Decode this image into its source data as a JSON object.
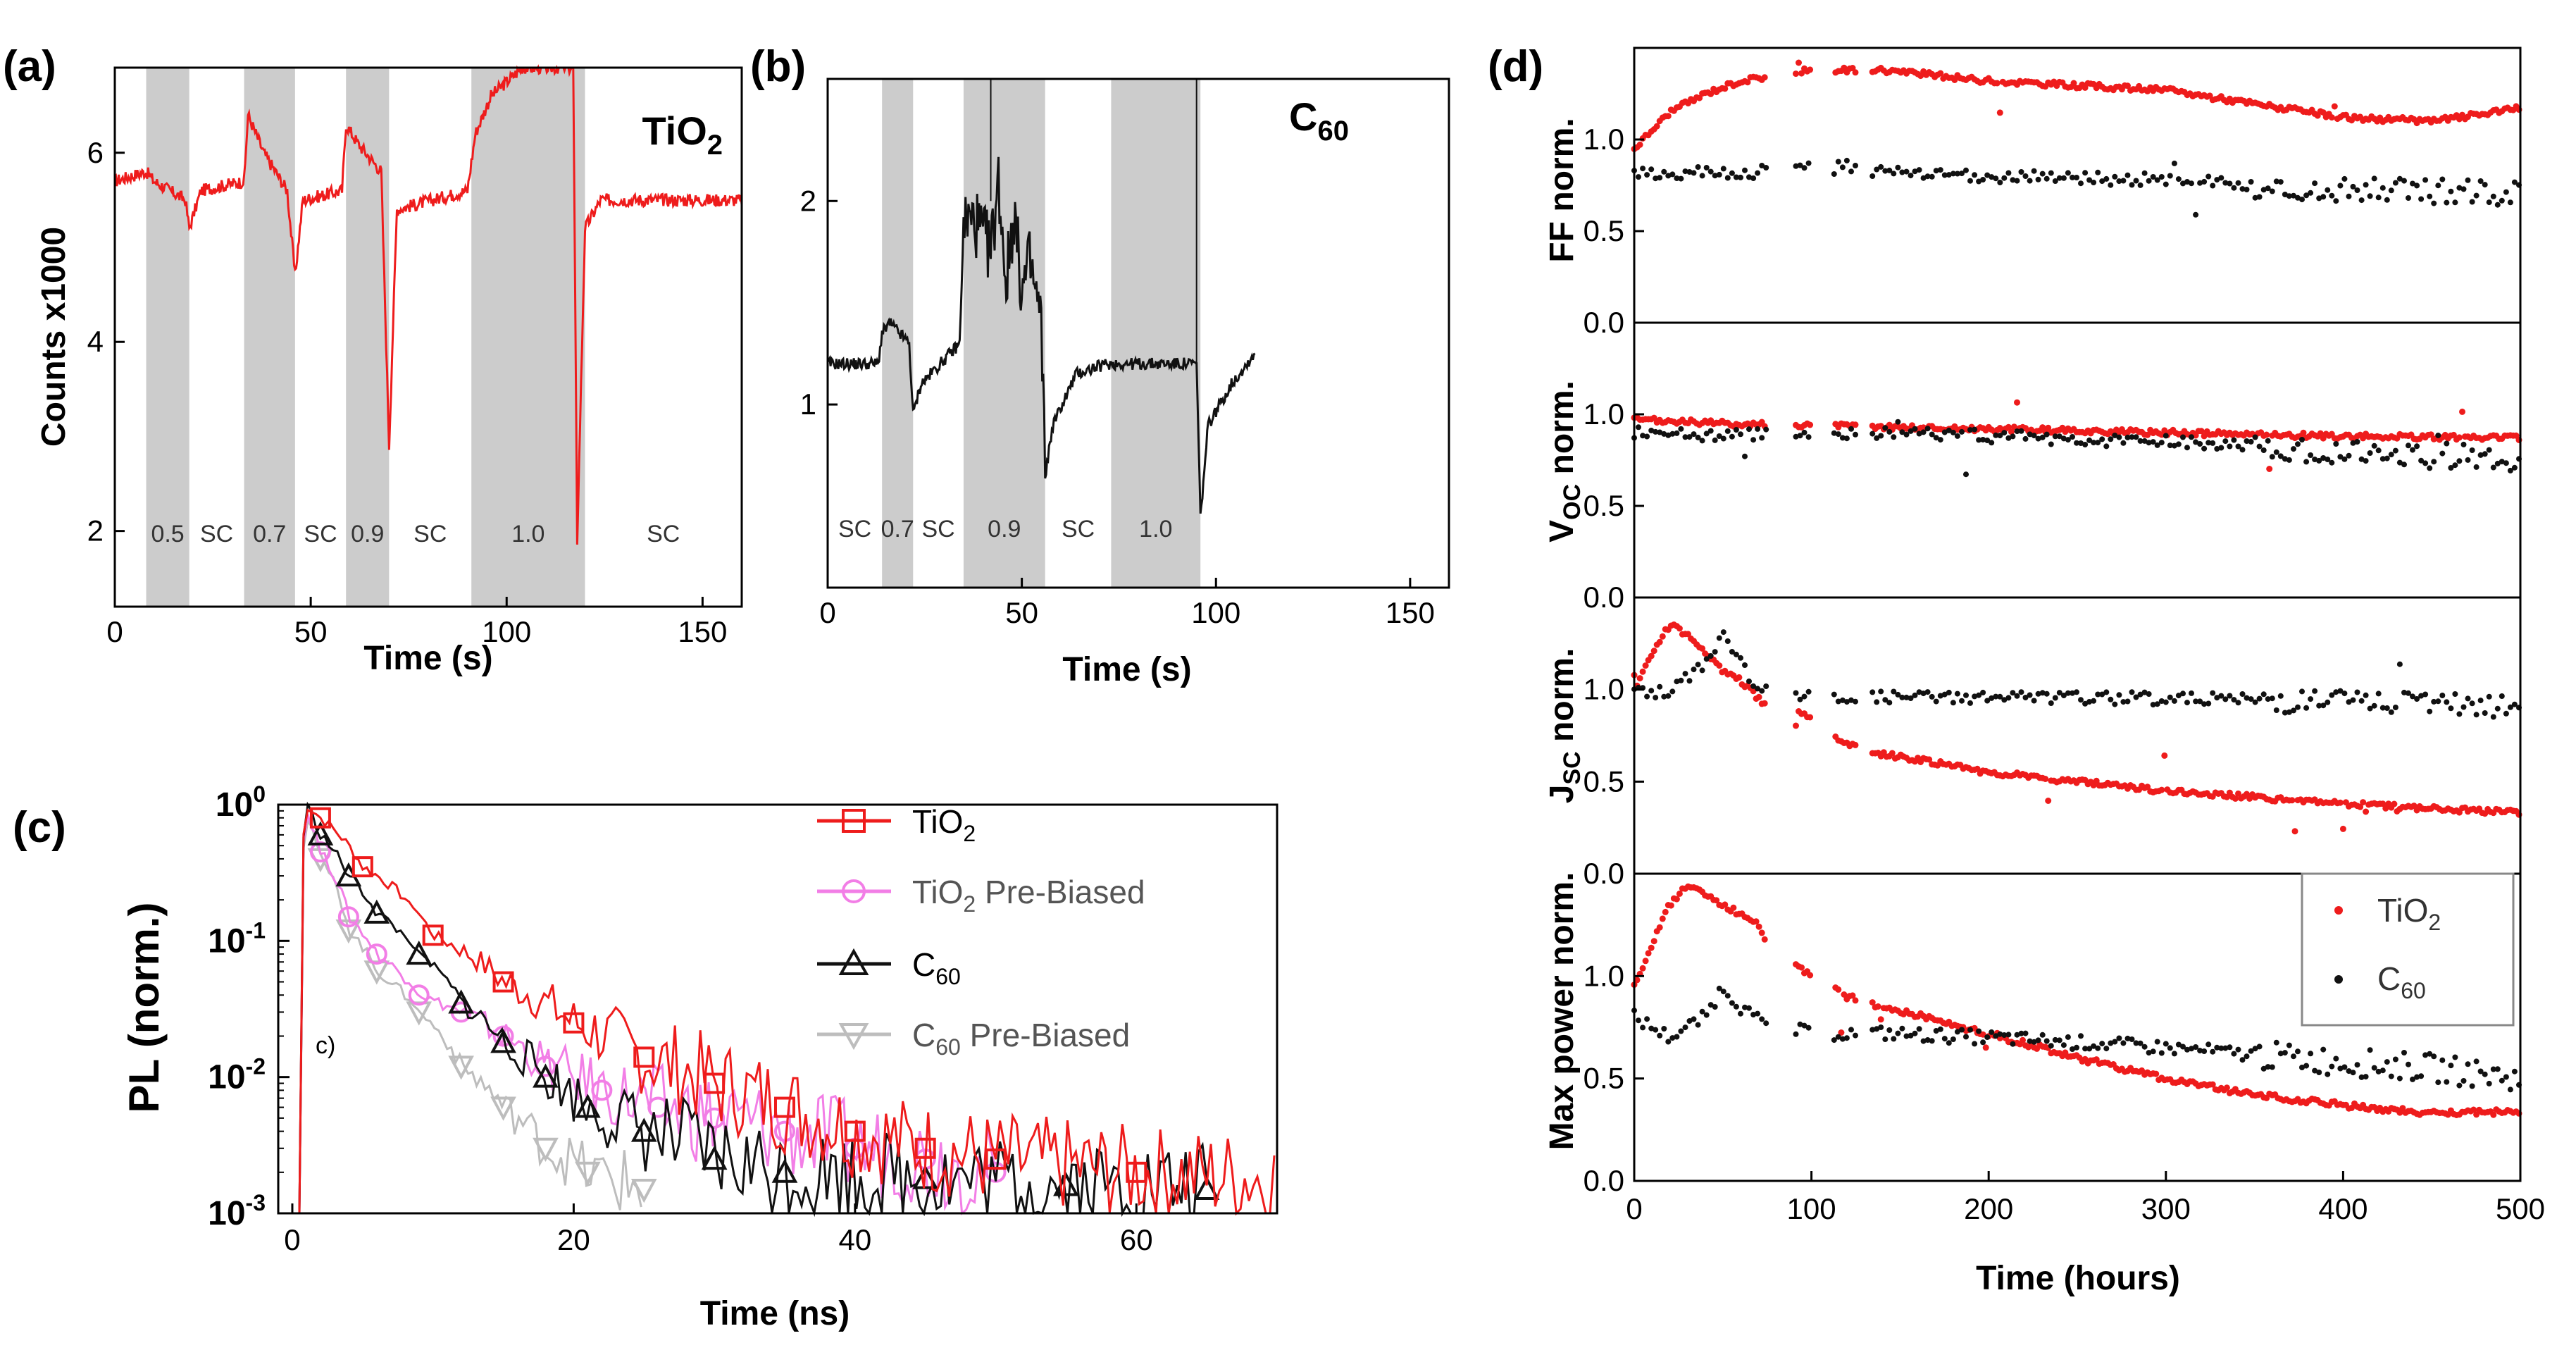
{
  "colors": {
    "red": "#ee1c1c",
    "black": "#111111",
    "pink": "#f27ee6",
    "gray": "#bdbdbd",
    "shade": "#cccccc"
  },
  "chart_data": [
    {
      "panel": "(a)",
      "type": "line",
      "annotation": "TiO2",
      "xlabel": "Time (s)",
      "ylabel": "Counts x1000",
      "xlim": [
        0,
        160
      ],
      "ylim": [
        1.2,
        6.9
      ],
      "xticks": [
        "0",
        "50",
        "100",
        "150"
      ],
      "yticks": [
        "2",
        "4",
        "6"
      ],
      "segments": [
        {
          "label": "0.5",
          "x0": 8,
          "x1": 19,
          "bias": true
        },
        {
          "label": "SC",
          "x0": 19,
          "x1": 33,
          "bias": false
        },
        {
          "label": "0.7",
          "x0": 33,
          "x1": 46,
          "bias": true
        },
        {
          "label": "SC",
          "x0": 46,
          "x1": 59,
          "bias": false
        },
        {
          "label": "0.9",
          "x0": 59,
          "x1": 70,
          "bias": true
        },
        {
          "label": "SC",
          "x0": 70,
          "x1": 91,
          "bias": false
        },
        {
          "label": "1.0",
          "x0": 91,
          "x1": 120,
          "bias": true
        },
        {
          "label": "SC",
          "x0": 120,
          "x1": 160,
          "bias": false
        }
      ],
      "series": [
        {
          "name": "TiO2",
          "color": "red",
          "x": [
            0,
            8,
            10,
            18,
            19,
            22,
            33,
            34,
            38,
            44,
            46,
            48,
            58,
            59,
            62,
            68,
            70,
            72,
            90,
            92,
            96,
            104,
            110,
            117,
            118,
            120,
            124,
            160
          ],
          "y": [
            5.7,
            5.8,
            5.7,
            5.5,
            5.2,
            5.6,
            5.7,
            6.4,
            6.0,
            5.6,
            4.7,
            5.5,
            5.6,
            6.3,
            6.1,
            5.8,
            2.9,
            5.4,
            5.6,
            6.2,
            6.6,
            6.9,
            6.9,
            6.9,
            1.9,
            5.2,
            5.5,
            5.5
          ]
        }
      ]
    },
    {
      "panel": "(b)",
      "type": "line",
      "annotation": "C60",
      "xlabel": "Time (s)",
      "ylabel": "",
      "xlim": [
        0,
        160
      ],
      "ylim": [
        0.1,
        2.6
      ],
      "xticks": [
        "0",
        "50",
        "100",
        "150"
      ],
      "yticks": [
        "1",
        "2"
      ],
      "segments": [
        {
          "label": "SC",
          "x0": 0,
          "x1": 14,
          "bias": false
        },
        {
          "label": "0.7",
          "x0": 14,
          "x1": 22,
          "bias": true
        },
        {
          "label": "SC",
          "x0": 22,
          "x1": 35,
          "bias": false
        },
        {
          "label": "0.9",
          "x0": 35,
          "x1": 56,
          "bias": true
        },
        {
          "label": "SC",
          "x0": 56,
          "x1": 73,
          "bias": false
        },
        {
          "label": "1.0",
          "x0": 73,
          "x1": 96,
          "bias": true
        }
      ],
      "series": [
        {
          "name": "C60",
          "color": "black",
          "x": [
            0,
            5,
            13,
            14,
            16,
            21,
            22,
            24,
            34,
            35,
            38,
            42,
            44,
            46,
            48,
            50,
            52,
            55,
            56,
            58,
            64,
            72,
            73,
            95,
            96,
            98,
            104,
            110
          ],
          "y": [
            1.2,
            1.2,
            1.2,
            1.35,
            1.4,
            1.3,
            0.95,
            1.1,
            1.3,
            1.9,
            1.9,
            1.75,
            2.1,
            1.6,
            1.95,
            1.55,
            1.7,
            1.4,
            0.65,
            0.9,
            1.15,
            1.2,
            1.2,
            1.2,
            0.45,
            0.9,
            1.1,
            1.25
          ]
        }
      ]
    },
    {
      "panel": "(c)",
      "type": "line",
      "yscale": "log",
      "xlabel": "Time (ns)",
      "ylabel": "PL (norm.)",
      "annotation": "c)",
      "xlim": [
        -1,
        70
      ],
      "ylim_exp": [
        -3,
        0
      ],
      "xticks": [
        "0",
        "20",
        "40",
        "60"
      ],
      "legend": [
        "TiO2",
        "TiO2 Pre-Biased",
        "C60",
        "C60 Pre-Biased"
      ],
      "series": [
        {
          "name": "TiO2",
          "color": "red",
          "marker": "square",
          "x": [
            0.5,
            1,
            2,
            5,
            10,
            15,
            20,
            25,
            30,
            35,
            40,
            45,
            50,
            60,
            70
          ],
          "y": [
            0.001,
            1,
            0.8,
            0.35,
            0.11,
            0.05,
            0.025,
            0.014,
            0.009,
            0.006,
            0.004,
            0.003,
            0.0025,
            0.002,
            0.0018
          ]
        },
        {
          "name": "TiO2 Pre-Biased",
          "color": "pink",
          "marker": "circle",
          "x": [
            0.5,
            1,
            2,
            4,
            6,
            9,
            12,
            15,
            18,
            22,
            26,
            30,
            35,
            40,
            45,
            50
          ],
          "y": [
            0.001,
            0.9,
            0.45,
            0.15,
            0.08,
            0.04,
            0.03,
            0.02,
            0.012,
            0.008,
            0.006,
            0.005,
            0.004,
            0.003,
            0.0025,
            0.002
          ]
        },
        {
          "name": "C60",
          "color": "black",
          "marker": "triangle-up",
          "x": [
            0.5,
            1,
            2,
            4,
            6,
            9,
            12,
            15,
            18,
            21,
            25,
            30,
            35,
            45,
            55,
            65
          ],
          "y": [
            0.001,
            1,
            0.6,
            0.3,
            0.16,
            0.08,
            0.035,
            0.018,
            0.01,
            0.006,
            0.004,
            0.0025,
            0.002,
            0.0018,
            0.0016,
            0.0015
          ]
        },
        {
          "name": "C60 Pre-Biased",
          "color": "gray",
          "marker": "triangle-down",
          "x": [
            0.5,
            1,
            2,
            4,
            6,
            9,
            12,
            15,
            18,
            21,
            25
          ],
          "y": [
            0.001,
            0.85,
            0.4,
            0.12,
            0.06,
            0.03,
            0.012,
            0.006,
            0.003,
            0.002,
            0.0015
          ]
        }
      ]
    },
    {
      "panel": "(d)",
      "type": "scatter",
      "annotation": "",
      "xlabel": "Time (hours)",
      "xlim": [
        0,
        500
      ],
      "xticks": [
        "0",
        "100",
        "200",
        "300",
        "400",
        "500"
      ],
      "legend": [
        "TiO2",
        "C60"
      ],
      "subplots": [
        {
          "ylabel": "FF norm.",
          "ylim": [
            0,
            1.5
          ],
          "yticks": [
            "0.0",
            "0.5",
            "1.0"
          ],
          "series": [
            {
              "name": "TiO2",
              "color": "red",
              "x": [
                0,
                10,
                20,
                40,
                60,
                80,
                100,
                120,
                140,
                200,
                300,
                400,
                450,
                500
              ],
              "y": [
                0.95,
                1.05,
                1.15,
                1.25,
                1.32,
                1.35,
                1.38,
                1.38,
                1.38,
                1.32,
                1.27,
                1.12,
                1.1,
                1.17
              ]
            },
            {
              "name": "C60",
              "color": "black",
              "x": [
                0,
                20,
                40,
                60,
                80,
                100,
                120,
                140,
                200,
                300,
                400,
                450,
                500
              ],
              "y": [
                0.82,
                0.8,
                0.83,
                0.8,
                0.84,
                0.84,
                0.85,
                0.82,
                0.8,
                0.78,
                0.72,
                0.72,
                0.7
              ]
            }
          ]
        },
        {
          "ylabel": "VOC norm.",
          "ylim": [
            0,
            1.5
          ],
          "yticks": [
            "0.0",
            "0.5",
            "1.0"
          ],
          "series": [
            {
              "name": "TiO2",
              "color": "red",
              "x": [
                0,
                50,
                100,
                150,
                200,
                300,
                400,
                500
              ],
              "y": [
                0.97,
                0.95,
                0.94,
                0.93,
                0.92,
                0.9,
                0.88,
                0.87
              ]
            },
            {
              "name": "C60",
              "color": "black",
              "x": [
                0,
                50,
                100,
                150,
                200,
                300,
                400,
                500
              ],
              "y": [
                0.9,
                0.88,
                0.9,
                0.9,
                0.88,
                0.85,
                0.8,
                0.75
              ]
            }
          ]
        },
        {
          "ylabel": "JSC norm.",
          "ylim": [
            0,
            1.5
          ],
          "yticks": [
            "0.0",
            "0.5",
            "1.0"
          ],
          "series": [
            {
              "name": "TiO2",
              "color": "red",
              "x": [
                0,
                10,
                20,
                30,
                40,
                50,
                60,
                70,
                80,
                90,
                120,
                140,
                200,
                300,
                400,
                500
              ],
              "y": [
                1.0,
                1.2,
                1.35,
                1.3,
                1.2,
                1.1,
                1.05,
                0.95,
                0.85,
                0.9,
                0.7,
                0.65,
                0.55,
                0.45,
                0.38,
                0.33
              ]
            },
            {
              "name": "C60",
              "color": "black",
              "x": [
                0,
                20,
                40,
                50,
                60,
                70,
                80,
                100,
                200,
                300,
                400,
                500
              ],
              "y": [
                1.0,
                0.98,
                1.15,
                1.3,
                1.15,
                1.0,
                0.97,
                0.96,
                0.96,
                0.95,
                0.94,
                0.9
              ]
            }
          ]
        },
        {
          "ylabel": "Max power norm.",
          "ylim": [
            0,
            1.5
          ],
          "yticks": [
            "0.0",
            "0.5",
            "1.0"
          ],
          "series": [
            {
              "name": "TiO2",
              "color": "red",
              "x": [
                0,
                10,
                20,
                30,
                40,
                50,
                60,
                70,
                80,
                90,
                120,
                140,
                200,
                250,
                300,
                350,
                400,
                450,
                500
              ],
              "y": [
                0.95,
                1.15,
                1.35,
                1.45,
                1.4,
                1.35,
                1.3,
                1.25,
                1.05,
                1.05,
                0.9,
                0.85,
                0.72,
                0.6,
                0.5,
                0.42,
                0.37,
                0.33,
                0.34
              ]
            },
            {
              "name": "C60",
              "color": "black",
              "x": [
                0,
                20,
                40,
                50,
                60,
                70,
                80,
                100,
                140,
                200,
                300,
                400,
                450,
                500
              ],
              "y": [
                0.8,
                0.7,
                0.8,
                0.95,
                0.85,
                0.78,
                0.75,
                0.72,
                0.72,
                0.7,
                0.65,
                0.58,
                0.55,
                0.5
              ]
            }
          ]
        }
      ]
    }
  ]
}
